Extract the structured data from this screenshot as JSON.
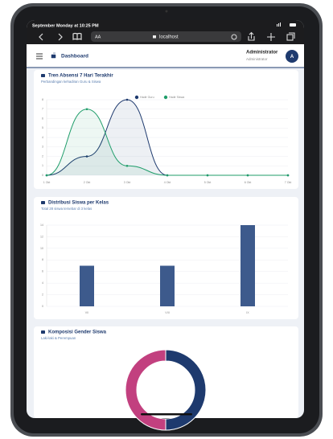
{
  "status_bar": {
    "time": "September Monday at 10:25 PM"
  },
  "browser": {
    "text_size": "AA",
    "address": "localhost"
  },
  "header": {
    "title": "Dashboard",
    "user_name": "Administrator",
    "user_role": "Administrator",
    "avatar": "A"
  },
  "chart_data": [
    {
      "type": "area",
      "title": "Tren Absensi 7 Hari Terakhir",
      "subtitle": "Perbandingan kehadiran Guru & Siswa",
      "categories": [
        "1 Okt",
        "2 Okt",
        "3 Okt",
        "4 Okt",
        "5 Okt",
        "6 Okt",
        "7 Okt"
      ],
      "series": [
        {
          "name": "Hadir Guru",
          "color": "#1e3a6e",
          "values": [
            0,
            2,
            8,
            0,
            0,
            0,
            0
          ]
        },
        {
          "name": "Hadir Siswa",
          "color": "#1f9d6a",
          "values": [
            0,
            7,
            1,
            0,
            0,
            0,
            0
          ]
        }
      ],
      "ylim": [
        0,
        8
      ],
      "yticks": [
        0,
        1,
        2,
        3,
        4,
        5,
        6,
        7,
        8
      ],
      "grid": true,
      "legend": "top"
    },
    {
      "type": "bar",
      "title": "Distribusi Siswa per Kelas",
      "subtitle": "Total 28 siswa tersebar di 3 kelas",
      "categories": [
        "VII",
        "VIII",
        "IX"
      ],
      "values": [
        7,
        7,
        14
      ],
      "color": "#3d5a8c",
      "ylim": [
        0,
        14
      ],
      "yticks": [
        0,
        2,
        4,
        6,
        8,
        10,
        12,
        14
      ],
      "grid": true
    },
    {
      "type": "pie",
      "title": "Komposisi Gender Siswa",
      "subtitle": "Laki-laki & Perempuan",
      "values": [
        14,
        14
      ],
      "colors": [
        "#1e3a6e",
        "#c2407f"
      ],
      "donut": true
    }
  ]
}
